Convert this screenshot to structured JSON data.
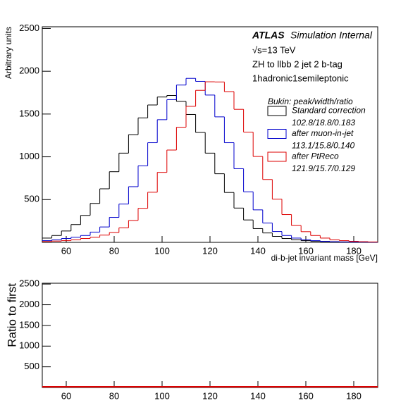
{
  "chart_data": [
    {
      "type": "histogram",
      "experiment": "ATLAS",
      "status": "Simulation Internal",
      "annotations": [
        "√s=13 TeV",
        "ZH to llbb 2 jet 2 b-tag",
        "1hadronic1semileptonic"
      ],
      "xlabel": "di-b-jet invariant mass [GeV]",
      "ylabel": "Arbitrary units",
      "legend_title": "Bukin: peak/width/ratio",
      "legend": "upper right",
      "xlim": [
        50,
        190
      ],
      "xticks": [
        60,
        80,
        100,
        120,
        140,
        160,
        180
      ],
      "ylim": [
        0,
        2520
      ],
      "yticks": [
        500,
        1000,
        1500,
        2000,
        2500
      ],
      "bins": [
        50,
        54,
        58,
        62,
        66,
        70,
        74,
        78,
        82,
        86,
        90,
        94,
        98,
        102,
        106,
        110,
        114,
        118,
        122,
        126,
        130,
        134,
        138,
        142,
        146,
        150,
        154,
        158,
        162,
        166,
        170,
        174,
        178,
        182,
        186,
        190
      ],
      "series": [
        {
          "name": "Standard correction",
          "fit_label": "102.8/18.8/0.183",
          "color": "#000000",
          "values": [
            50,
            80,
            133,
            208,
            315,
            455,
            626,
            826,
            1043,
            1259,
            1455,
            1606,
            1699,
            1717,
            1648,
            1495,
            1285,
            1043,
            802,
            583,
            401,
            262,
            161,
            110,
            70,
            45,
            30,
            20,
            14,
            10,
            7,
            5,
            4,
            3,
            2
          ]
        },
        {
          "name": "after muon-in-jet",
          "fit_label": "113.1/15.8/0.140",
          "color": "#0000cc",
          "values": [
            20,
            30,
            45,
            60,
            80,
            120,
            180,
            292,
            448,
            651,
            895,
            1165,
            1434,
            1668,
            1839,
            1917,
            1882,
            1722,
            1467,
            1165,
            861,
            591,
            380,
            226,
            127,
            80,
            50,
            30,
            20,
            12,
            8,
            5,
            4,
            3,
            2
          ]
        },
        {
          "name": "after PtReco",
          "fit_label": "121.9/15.7/0.129",
          "color": "#dd0000",
          "values": [
            10,
            15,
            20,
            30,
            45,
            60,
            85,
            115,
            170,
            256,
            398,
            586,
            818,
            1079,
            1346,
            1590,
            1777,
            1877,
            1875,
            1762,
            1555,
            1289,
            1004,
            735,
            505,
            325,
            197,
            125,
            80,
            50,
            30,
            20,
            12,
            8,
            5
          ]
        }
      ]
    },
    {
      "type": "line",
      "ylabel": "Ratio to first",
      "xlim": [
        50,
        190
      ],
      "xticks": [
        60,
        80,
        100,
        120,
        140,
        160,
        180
      ],
      "ylim": [
        0,
        2520
      ],
      "yticks": [
        500,
        1000,
        1500,
        2000,
        2500
      ],
      "series": [
        {
          "color": "#0000cc",
          "x": [
            128,
            190
          ],
          "values": [
            1,
            1
          ]
        },
        {
          "color": "#dd0000",
          "x": [
            50,
            190
          ],
          "values": [
            1,
            1
          ]
        }
      ]
    }
  ]
}
